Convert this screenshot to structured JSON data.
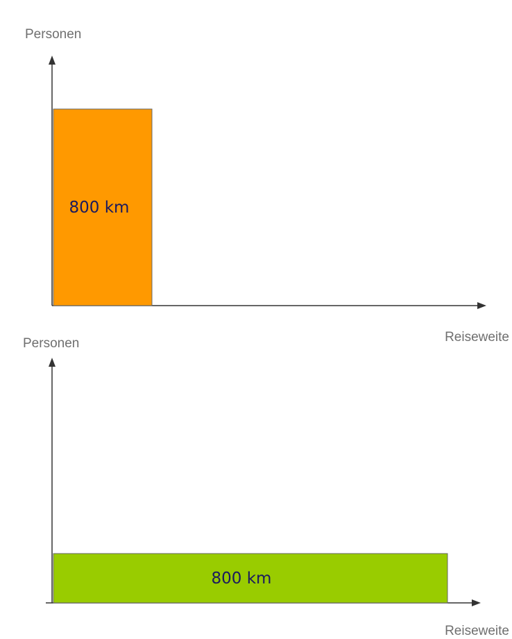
{
  "diagrams": [
    {
      "y_axis_label": "Personen",
      "x_axis_label": "Reiseweite",
      "bar": {
        "label": "800 km",
        "color": "#ff9900"
      }
    },
    {
      "y_axis_label": "Personen",
      "x_axis_label": "Reiseweite",
      "bar": {
        "label": "800 km",
        "color": "#99cc00"
      }
    }
  ],
  "colors": {
    "axis": "#333333",
    "bar_border": "#666666"
  }
}
